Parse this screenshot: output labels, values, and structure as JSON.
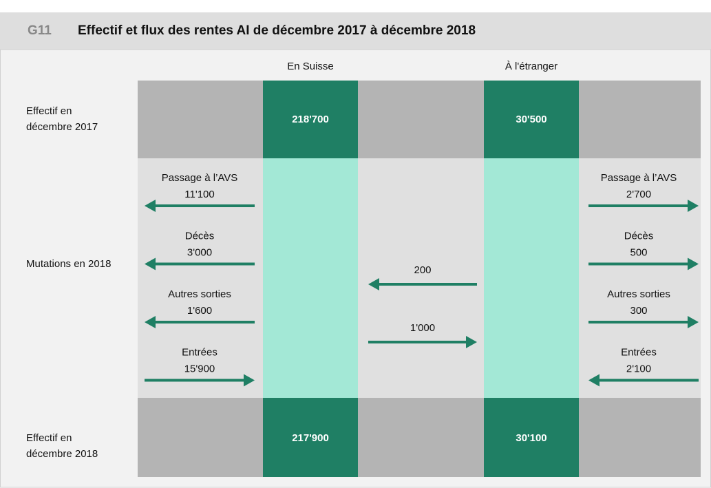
{
  "header": {
    "code": "G11",
    "title": "Effectif et flux des rentes AI de décembre 2017 à décembre 2018"
  },
  "columns": [
    "En Suisse",
    "À l'étranger"
  ],
  "rows": {
    "start": [
      "Effectif en",
      "décembre 2017"
    ],
    "mutations": "Mutations en 2018",
    "end": [
      "Effectif en",
      "décembre 2018"
    ]
  },
  "stock": {
    "start": [
      "218'700",
      "30'500"
    ],
    "end": [
      "217'900",
      "30'100"
    ]
  },
  "flows": {
    "suisse": [
      {
        "label": "Passage à l’AVS",
        "value": "11'100",
        "direction": "out"
      },
      {
        "label": "Décès",
        "value": "3'000",
        "direction": "out"
      },
      {
        "label": "Autres sorties",
        "value": "1'600",
        "direction": "out"
      },
      {
        "label": "Entrées",
        "value": "15'900",
        "direction": "in"
      }
    ],
    "etranger": [
      {
        "label": "Passage à l’AVS",
        "value": "2'700",
        "direction": "out"
      },
      {
        "label": "Décès",
        "value": "500",
        "direction": "out"
      },
      {
        "label": "Autres sorties",
        "value": "300",
        "direction": "out"
      },
      {
        "label": "Entrées",
        "value": "2'100",
        "direction": "in"
      }
    ],
    "transfer": [
      {
        "value": "200",
        "direction": "to_suisse"
      },
      {
        "value": "1'000",
        "direction": "to_etranger"
      }
    ]
  }
}
